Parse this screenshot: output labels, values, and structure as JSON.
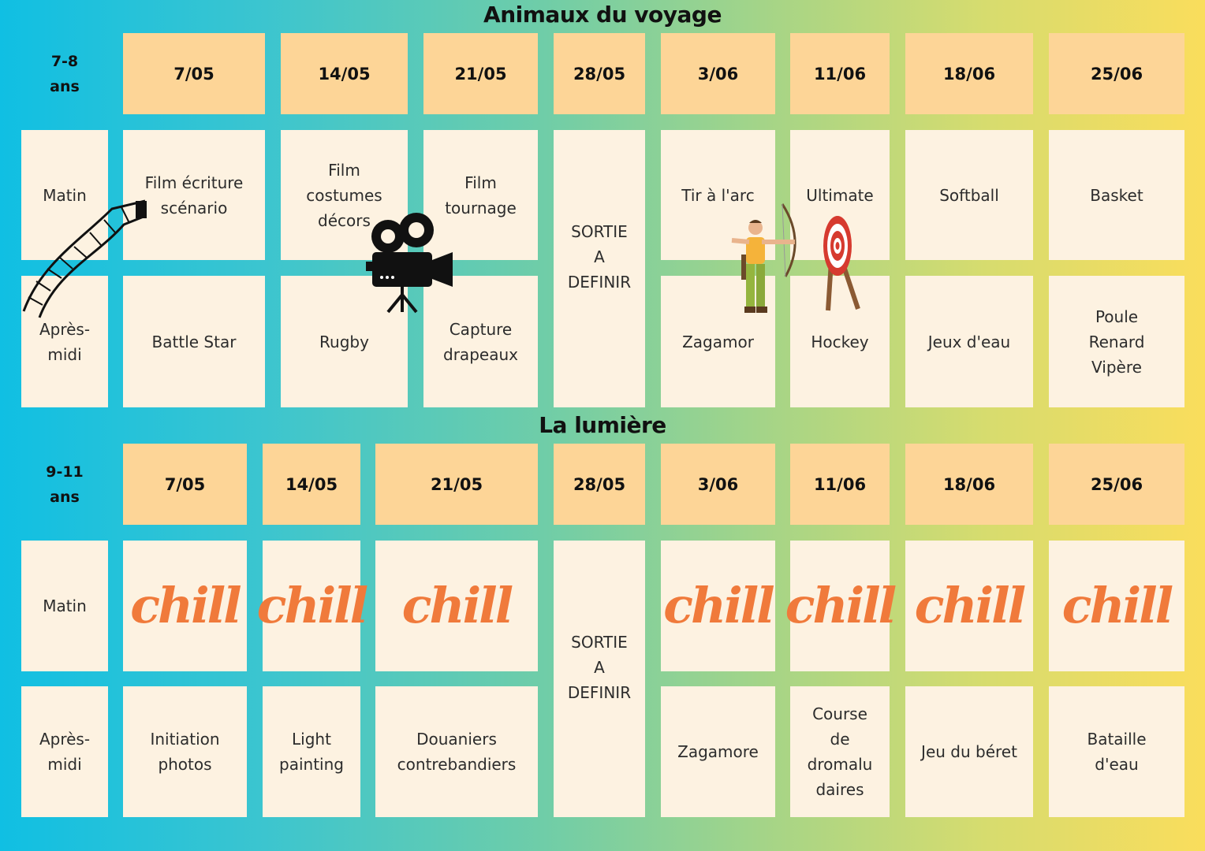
{
  "sections": [
    {
      "title": "Animaux du voyage",
      "age_label": "7-8\nans",
      "row_labels": [
        "Matin",
        "Après-\nmidi"
      ],
      "dates": [
        "7/05",
        "14/05",
        "21/05",
        "28/05",
        "3/06",
        "11/06",
        "18/06",
        "25/06"
      ],
      "morning": [
        "Film écriture\nscénario",
        "Film\ncostumes\ndécors",
        "Film\ntournage",
        null,
        "Tir à l'arc",
        "Ultimate",
        "Softball",
        "Basket"
      ],
      "afternoon": [
        "Battle Star",
        "Rugby",
        "Capture\ndrapeaux",
        null,
        "Zagamor",
        "Hockey",
        "Jeux d'eau",
        "Poule\nRenard\nVipère"
      ],
      "outing": "SORTIE\nA\nDEFINIR"
    },
    {
      "title": "La lumière",
      "age_label": "9-11\nans",
      "row_labels": [
        "Matin",
        "Après-\nmidi"
      ],
      "dates": [
        "7/05",
        "14/05",
        "21/05",
        "28/05",
        "3/06",
        "11/06",
        "18/06",
        "25/06"
      ],
      "morning": [
        "chill",
        "chill",
        "chill",
        null,
        "chill",
        "chill",
        "chill",
        "chill"
      ],
      "afternoon": [
        "Initiation\nphotos",
        "Light\npainting",
        "Douaniers\ncontrebandiers",
        null,
        "Zagamore",
        "Course\nde\ndromalu\ndaires",
        "Jeu du béret",
        "Bataille\nd'eau"
      ],
      "outing": "SORTIE\nA\nDEFINIR"
    }
  ],
  "colors": {
    "header": "#fdd597",
    "cell": "#fdf2e1",
    "chill": "#f07a3b",
    "gradient_start": "#10bfe3",
    "gradient_end": "#fadd5c"
  },
  "icons": [
    "film-strip-icon",
    "movie-camera-icon",
    "archer-icon",
    "archery-target-icon"
  ]
}
